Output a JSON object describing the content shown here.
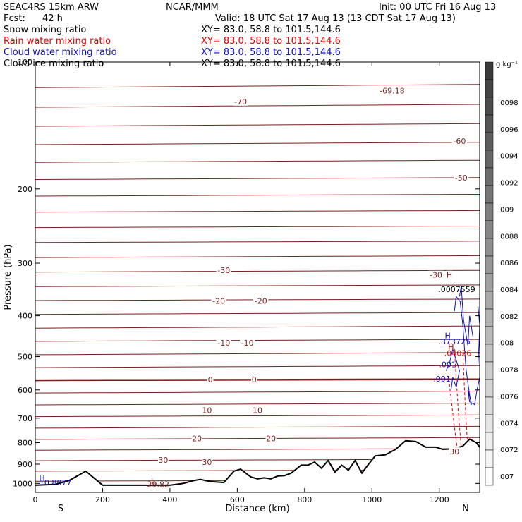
{
  "header": {
    "model": "SEAC4RS 15km ARW",
    "org": "NCAR/MMM",
    "init": "Init: 00 UTC Fri 16 Aug 13",
    "fcst_label": "Fcst:",
    "fcst_value": "42 h",
    "valid": "Valid: 18 UTC Sat 17 Aug 13 (13 CDT Sat 17 Aug 13)"
  },
  "fields": [
    {
      "name": "Snow mixing ratio",
      "xy": "XY=  83.0, 58.8 to 101.5,144.6",
      "color": "#000000"
    },
    {
      "name": "Rain water mixing ratio",
      "xy": "XY=  83.0, 58.8 to 101.5,144.6",
      "color": "#e00000"
    },
    {
      "name": "Cloud water mixing ratio",
      "xy": "XY=  83.0, 58.8 to 101.5,144.6",
      "color": "#1010c0"
    },
    {
      "name": "Cloud ice mixing ratio",
      "xy": "XY=  83.0, 58.8 to 101.5,144.6",
      "color": "#000000"
    }
  ],
  "colors": {
    "temperature": "#7a1f1f",
    "rain": "#e00000",
    "cloud_water": "#1010c0",
    "terrain": "#000000"
  },
  "chart_data": {
    "type": "line",
    "xlabel": "Distance (km)",
    "ylabel": "Pressure (hPa)",
    "xlim": [
      0,
      1320
    ],
    "ylim": [
      1050,
      100
    ],
    "yscale": "log",
    "x_ticks": [
      0,
      200,
      400,
      600,
      800,
      1000,
      1200
    ],
    "y_ticks": [
      100,
      200,
      300,
      400,
      500,
      600,
      700,
      800,
      900,
      1000
    ],
    "y_tick_labels": [
      "100",
      "200",
      "300",
      "400",
      "500",
      "600",
      "700",
      "800",
      "900",
      "1000"
    ],
    "start_label": "S",
    "end_label": "N",
    "temperature_contours": [
      {
        "x": [
          0,
          1320
        ],
        "p": [
          115,
          113
        ]
      },
      {
        "x": [
          0,
          1320
        ],
        "p": [
          128,
          126
        ]
      },
      {
        "x": [
          0,
          1320
        ],
        "p": [
          142,
          140
        ]
      },
      {
        "x": [
          0,
          1320
        ],
        "p": [
          157,
          155
        ]
      },
      {
        "x": [
          0,
          1320
        ],
        "p": [
          173,
          171
        ]
      },
      {
        "x": [
          0,
          1320
        ],
        "p": [
          190,
          188
        ]
      },
      {
        "x": [
          0,
          1320
        ],
        "p": [
          208,
          206
        ]
      },
      {
        "x": [
          0,
          1320
        ],
        "p": [
          227,
          225
        ]
      },
      {
        "x": [
          0,
          1320
        ],
        "p": [
          247,
          245
        ]
      },
      {
        "x": [
          0,
          1320
        ],
        "p": [
          268,
          266
        ]
      },
      {
        "x": [
          0,
          1320
        ],
        "p": [
          291,
          288
        ]
      },
      {
        "x": [
          0,
          1320
        ],
        "p": [
          315,
          312
        ]
      },
      {
        "x": [
          0,
          1320
        ],
        "p": [
          341,
          338
        ]
      },
      {
        "x": [
          0,
          1320
        ],
        "p": [
          368,
          365
        ]
      },
      {
        "x": [
          0,
          1320
        ],
        "p": [
          397,
          393
        ]
      },
      {
        "x": [
          0,
          1320
        ],
        "p": [
          428,
          423
        ]
      },
      {
        "x": [
          0,
          1320
        ],
        "p": [
          460,
          455
        ]
      },
      {
        "x": [
          0,
          1320
        ],
        "p": [
          495,
          489
        ]
      },
      {
        "x": [
          0,
          1320
        ],
        "p": [
          531,
          525
        ]
      },
      {
        "x": [
          0,
          1320
        ],
        "p": [
          569,
          566
        ]
      },
      {
        "x": [
          0,
          1320
        ],
        "p": [
          610,
          604
        ]
      },
      {
        "x": [
          0,
          1320
        ],
        "p": [
          651,
          645
        ]
      },
      {
        "x": [
          0,
          1320
        ],
        "p": [
          694,
          688
        ]
      },
      {
        "x": [
          0,
          1320
        ],
        "p": [
          739,
          732
        ]
      },
      {
        "x": [
          0,
          1320
        ],
        "p": [
          786,
          778
        ]
      },
      {
        "x": [
          0,
          1320
        ],
        "p": [
          834,
          826
        ]
      },
      {
        "x": [
          0,
          1320
        ],
        "p": [
          883,
          876
        ]
      },
      {
        "x": [
          0,
          1320
        ],
        "p": [
          935,
          928
        ]
      },
      {
        "x": [
          0,
          1320
        ],
        "p": [
          988,
          981
        ]
      }
    ],
    "zero_contour_index": 19,
    "temperature_labels": [
      {
        "text": "-69.18",
        "x": 1060,
        "p": 117
      },
      {
        "text": "-70",
        "x": 610,
        "p": 124
      },
      {
        "text": "-60",
        "x": 1260,
        "p": 154
      },
      {
        "text": "-50",
        "x": 1265,
        "p": 188
      },
      {
        "text": "-30",
        "x": 560,
        "p": 312
      },
      {
        "text": "-30",
        "x": 1190,
        "p": 320
      },
      {
        "text": "H",
        "x": 1230,
        "p": 320
      },
      {
        "text": "-20",
        "x": 545,
        "p": 369
      },
      {
        "text": "-20",
        "x": 670,
        "p": 369
      },
      {
        "text": "-10",
        "x": 560,
        "p": 464
      },
      {
        "text": "-10",
        "x": 630,
        "p": 464
      },
      {
        "text": "0",
        "x": 520,
        "p": 567
      },
      {
        "text": "0",
        "x": 650,
        "p": 567
      },
      {
        "text": "10",
        "x": 510,
        "p": 670
      },
      {
        "text": "10",
        "x": 660,
        "p": 670
      },
      {
        "text": "20",
        "x": 480,
        "p": 782
      },
      {
        "text": "20",
        "x": 700,
        "p": 782
      },
      {
        "text": "30",
        "x": 380,
        "p": 880
      },
      {
        "text": "30",
        "x": 510,
        "p": 890
      },
      {
        "text": "30",
        "x": 1245,
        "p": 840
      }
    ],
    "extrema_labels": [
      {
        "text": ".0007559",
        "x": 1252,
        "p": 346,
        "color": "#000000"
      },
      {
        "text": "H",
        "x": 1225,
        "p": 445,
        "color": "#1010c0"
      },
      {
        "text": ".373725",
        "x": 1245,
        "p": 460,
        "color": "#1010c0"
      },
      {
        "text": "H",
        "x": 1235,
        "p": 474,
        "color": "#e00000"
      },
      {
        "text": ".04026",
        "x": 1255,
        "p": 490,
        "color": "#e00000"
      },
      {
        "text": ".001",
        "x": 1225,
        "p": 522,
        "color": "#1010c0"
      },
      {
        "text": ".001",
        "x": 1208,
        "p": 565,
        "color": "#1010c0"
      },
      {
        "text": "H",
        "x": 20,
        "p": 970,
        "color": "#1010c0"
      },
      {
        "text": "10.8077",
        "x": 60,
        "p": 995,
        "color": "#1010c0"
      },
      {
        "text": "L",
        "x": 350,
        "p": 985,
        "color": "#7a1f1f"
      },
      {
        "text": "29.82",
        "x": 365,
        "p": 1005,
        "color": "#7a1f1f"
      }
    ],
    "terrain": {
      "x": [
        0,
        60,
        100,
        150,
        200,
        300,
        400,
        440,
        470,
        490,
        520,
        560,
        590,
        610,
        640,
        660,
        680,
        700,
        720,
        740,
        760,
        790,
        810,
        830,
        850,
        870,
        890,
        910,
        930,
        950,
        970,
        990,
        1010,
        1040,
        1070,
        1100,
        1130,
        1160,
        1190,
        1210,
        1240,
        1270,
        1290,
        1310,
        1320
      ],
      "p": [
        1010,
        1005,
        985,
        935,
        1010,
        1010,
        1010,
        1000,
        985,
        978,
        990,
        995,
        935,
        925,
        965,
        975,
        970,
        975,
        960,
        958,
        945,
        905,
        905,
        890,
        920,
        882,
        940,
        905,
        930,
        882,
        945,
        900,
        860,
        855,
        830,
        792,
        795,
        820,
        820,
        830,
        828,
        815,
        785,
        800,
        820
      ]
    },
    "rain_contours": [
      {
        "x": [
          1230,
          1240,
          1250,
          1255,
          1250
        ],
        "p": [
          580,
          680,
          790,
          840,
          810
        ]
      },
      {
        "x": [
          1245,
          1250,
          1258,
          1265,
          1260
        ],
        "p": [
          480,
          560,
          700,
          820,
          840
        ]
      },
      {
        "x": [
          1270,
          1275,
          1280,
          1285
        ],
        "p": [
          490,
          600,
          720,
          830
        ]
      }
    ],
    "cloud_water_contours": [
      {
        "x": [
          1245,
          1250,
          1262,
          1270,
          1275,
          1280,
          1288,
          1292,
          1296,
          1290,
          1285,
          1290,
          1305,
          1312,
          1320
        ],
        "p": [
          390,
          360,
          370,
          420,
          480,
          540,
          600,
          630,
          650,
          620,
          600,
          640,
          650,
          600,
          560
        ]
      },
      {
        "x": [
          1260,
          1265,
          1272,
          1285,
          1290,
          1300
        ],
        "p": [
          360,
          340,
          410,
          470,
          400,
          450
        ]
      },
      {
        "x": [
          1220,
          1230,
          1240,
          1260,
          1250,
          1240,
          1235
        ],
        "p": [
          540,
          520,
          480,
          540,
          590,
          560,
          600
        ]
      },
      {
        "x": [
          1315,
          1320,
          1318,
          1315
        ],
        "p": [
          380,
          420,
          470,
          520
        ]
      }
    ]
  },
  "colorbar": {
    "unit": "g kg⁻¹",
    "tick_labels": [
      ".0098",
      ".0096",
      ".0094",
      ".0092",
      ".009",
      ".0088",
      ".0086",
      ".0084",
      ".0082",
      ".008",
      ".0078",
      ".0076",
      ".0074",
      ".0072",
      ".007"
    ],
    "boxes": 24,
    "color_top": "#3a3a3a",
    "color_bottom": "#ffffff"
  }
}
